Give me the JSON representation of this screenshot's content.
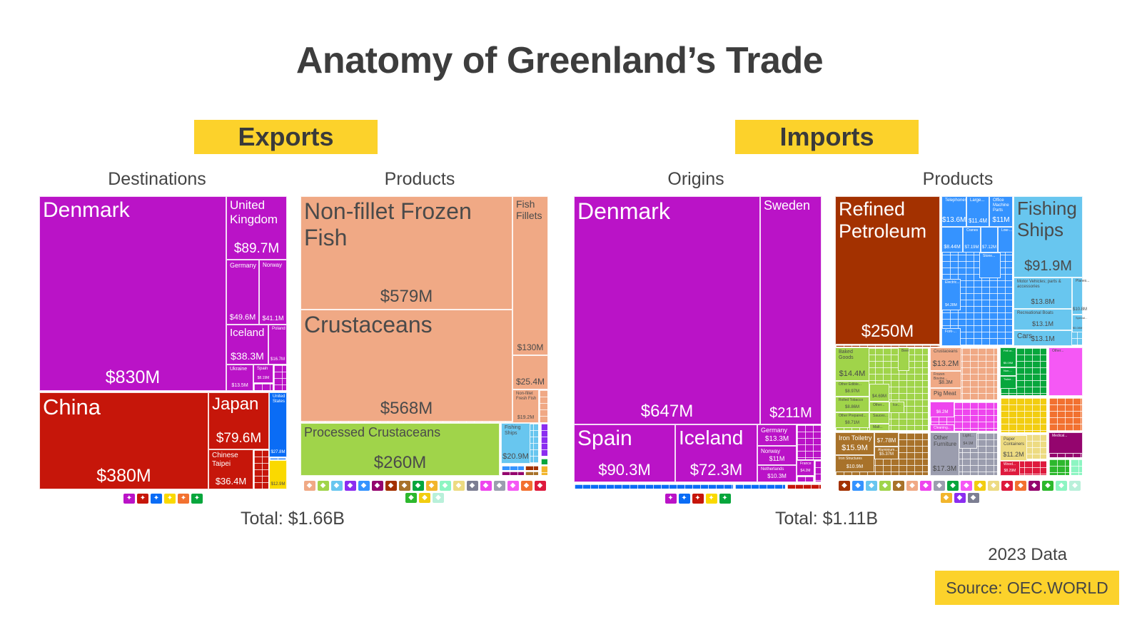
{
  "title": "Anatomy of Greenland’s Trade",
  "exports_label": "Exports",
  "imports_label": "Imports",
  "exports_total": "Total: $1.66B",
  "imports_total": "Total: $1.11B",
  "year_note": "2023 Data",
  "source": "Source: OEC.WORLD",
  "colors": {
    "badge": "#FCD22B",
    "europe": "#BA13C7",
    "asia": "#C6160A",
    "north_america": "#0A6CF5",
    "south_america": "#FAD900"
  },
  "chart_data": [
    {
      "type": "treemap",
      "title": "Destinations",
      "tiles": [
        {
          "label": "Denmark",
          "value": "$830M",
          "color": "#BA13C7"
        },
        {
          "label": "United Kingdom",
          "value": "$89.7M",
          "color": "#BA13C7"
        },
        {
          "label": "Germany",
          "value": "$49.6M",
          "color": "#BA13C7"
        },
        {
          "label": "Norway",
          "value": "$41.1M",
          "color": "#BA13C7"
        },
        {
          "label": "Iceland",
          "value": "$38.3M",
          "color": "#BA13C7"
        },
        {
          "label": "Poland",
          "value": "$16.7M",
          "color": "#BA13C7"
        },
        {
          "label": "Ukraine",
          "value": "$13.5M",
          "color": "#BA13C7"
        },
        {
          "label": "Spain",
          "value": "$8.19M",
          "color": "#BA13C7"
        },
        {
          "label": "China",
          "value": "$380M",
          "color": "#C6160A"
        },
        {
          "label": "Japan",
          "value": "$79.6M",
          "color": "#C6160A"
        },
        {
          "label": "Chinese Taipei",
          "value": "$36.4M",
          "color": "#C6160A"
        },
        {
          "label": "United States",
          "value": "$27.8M",
          "color": "#0A6CF5"
        },
        {
          "label": "",
          "value": "$12.9M",
          "color": "#FAD900"
        }
      ],
      "legend_icons": [
        {
          "name": "europe-icon",
          "color": "#BA13C7"
        },
        {
          "name": "asia-icon",
          "color": "#C6160A"
        },
        {
          "name": "north-america-icon",
          "color": "#0A6CF5"
        },
        {
          "name": "south-america-icon",
          "color": "#FAD900"
        },
        {
          "name": "africa-icon",
          "color": "#F27130"
        },
        {
          "name": "oceania-icon",
          "color": "#07A63C"
        }
      ]
    },
    {
      "type": "treemap",
      "title": "Products",
      "tiles": [
        {
          "label": "Non-fillet Frozen Fish",
          "value": "$579M",
          "color": "#F0A985"
        },
        {
          "label": "Crustaceans",
          "value": "$568M",
          "color": "#F0A985"
        },
        {
          "label": "Fish Fillets",
          "value": "$130M",
          "color": "#F0A985"
        },
        {
          "label": "",
          "value": "$25.4M",
          "color": "#F0A985"
        },
        {
          "label": "Non-fillet Fresh Fish",
          "value": "$19.2M",
          "color": "#F0A985"
        },
        {
          "label": "Processed Crustaceans",
          "value": "$260M",
          "color": "#A0D44A"
        },
        {
          "label": "Fishing Ships",
          "value": "$20.9M",
          "color": "#68C6EF"
        }
      ],
      "legend_icons": [
        {
          "name": "animal-products-icon",
          "color": "#F0A985"
        },
        {
          "name": "vegetable-products-icon",
          "color": "#A0D44A"
        },
        {
          "name": "transportation-icon",
          "color": "#68C6EF"
        },
        {
          "name": "precious-metals-icon",
          "color": "#8B2DF0"
        },
        {
          "name": "machines-icon",
          "color": "#3593FF"
        },
        {
          "name": "instruments-icon",
          "color": "#94056E"
        },
        {
          "name": "mineral-products-icon",
          "color": "#A33100"
        },
        {
          "name": "metals-icon",
          "color": "#A8722A"
        },
        {
          "name": "textiles-icon",
          "color": "#07A63C"
        },
        {
          "name": "foodstuffs-icon",
          "color": "#F2B52C"
        },
        {
          "name": "animal-hides-icon",
          "color": "#8DF5C2"
        },
        {
          "name": "paper-goods-icon",
          "color": "#EDDB82"
        },
        {
          "name": "arts-icon",
          "color": "#7C7E92"
        },
        {
          "name": "chemical-products-icon",
          "color": "#EE45EE"
        },
        {
          "name": "stone-and-glass-icon",
          "color": "#9B9DAE"
        },
        {
          "name": "plastics-icon",
          "color": "#F558F5"
        },
        {
          "name": "animal-fats-icon",
          "color": "#F27130"
        },
        {
          "name": "miscellaneous-icon",
          "color": "#DE1A3D"
        },
        {
          "name": "footwear-icon",
          "color": "#2DB82D"
        },
        {
          "name": "weapons-icon",
          "color": "#F2CD10"
        },
        {
          "name": "wood-products-icon",
          "color": "#B9F0DA"
        }
      ]
    },
    {
      "type": "treemap",
      "title": "Origins",
      "tiles": [
        {
          "label": "Denmark",
          "value": "$647M",
          "color": "#BA13C7"
        },
        {
          "label": "Sweden",
          "value": "$211M",
          "color": "#BA13C7"
        },
        {
          "label": "Spain",
          "value": "$90.3M",
          "color": "#BA13C7"
        },
        {
          "label": "Iceland",
          "value": "$72.3M",
          "color": "#BA13C7"
        },
        {
          "label": "Germany",
          "value": "$13.3M",
          "color": "#BA13C7"
        },
        {
          "label": "Norway",
          "value": "$11M",
          "color": "#BA13C7"
        },
        {
          "label": "Netherlands",
          "value": "$10.3M",
          "color": "#BA13C7"
        },
        {
          "label": "France",
          "value": "$4.2M",
          "color": "#BA13C7"
        }
      ],
      "legend_icons": [
        {
          "name": "europe-icon",
          "color": "#BA13C7"
        },
        {
          "name": "north-america-icon",
          "color": "#0A6CF5"
        },
        {
          "name": "asia-icon",
          "color": "#C6160A"
        },
        {
          "name": "south-america-icon",
          "color": "#FAD900"
        },
        {
          "name": "oceania-icon",
          "color": "#07A63C"
        }
      ]
    },
    {
      "type": "treemap",
      "title": "Products",
      "tiles": [
        {
          "label": "Refined Petroleum",
          "value": "$250M",
          "color": "#A33100"
        },
        {
          "label": "Telephones",
          "value": "$13.6M",
          "color": "#3593FF"
        },
        {
          "label": "Large...",
          "value": "$11.4M",
          "color": "#3593FF"
        },
        {
          "label": "Office Machine Parts",
          "value": "$11M",
          "color": "#3593FF"
        },
        {
          "label": "",
          "value": "$8.44M",
          "color": "#3593FF"
        },
        {
          "label": "Cranes",
          "value": "$7.19M",
          "color": "#3593FF"
        },
        {
          "label": "",
          "value": "$7.12M",
          "color": "#3593FF"
        },
        {
          "label": "Low-...",
          "value": "",
          "color": "#3593FF"
        },
        {
          "label": "Stone...",
          "value": "",
          "color": "#3593FF"
        },
        {
          "label": "Electric...",
          "value": "$4.28M",
          "color": "#3593FF"
        },
        {
          "label": "Fork-...",
          "value": "",
          "color": "#3593FF"
        },
        {
          "label": "Fishing Ships",
          "value": "$91.9M",
          "color": "#68C6EF"
        },
        {
          "label": "Motor Vehicles; parts & accessories",
          "value": "$13.8M",
          "color": "#68C6EF"
        },
        {
          "label": "Planes...",
          "value": "$10.8M",
          "color": "#68C6EF"
        },
        {
          "label": "Recreational Boats",
          "value": "$13.1M",
          "color": "#68C6EF"
        },
        {
          "label": "Special...",
          "value": "$5.08M",
          "color": "#68C6EF"
        },
        {
          "label": "Cars",
          "value": "$13.1M",
          "color": "#68C6EF"
        },
        {
          "label": "Baked Goods",
          "value": "$14.4M",
          "color": "#A0D44A"
        },
        {
          "label": "Other Edible...",
          "value": "$8.97M",
          "color": "#A0D44A"
        },
        {
          "label": "Rolled Tobacco",
          "value": "$8.86M",
          "color": "#A0D44A"
        },
        {
          "label": "Other Prepared...",
          "value": "$8.71M",
          "color": "#A0D44A"
        },
        {
          "label": "",
          "value": "$4.69M",
          "color": "#A0D44A"
        },
        {
          "label": "Beer",
          "value": "",
          "color": "#A0D44A"
        },
        {
          "label": "Other...",
          "value": "",
          "color": "#A0D44A"
        },
        {
          "label": "Sauces...",
          "value": "",
          "color": "#A0D44A"
        },
        {
          "label": "Ice...",
          "value": "",
          "color": "#A0D44A"
        },
        {
          "label": "Malt...",
          "value": "",
          "color": "#A0D44A"
        },
        {
          "label": "Iron Toiletry",
          "value": "$15.9M",
          "color": "#A8722A"
        },
        {
          "label": "",
          "value": "$7.78M",
          "color": "#A8722A"
        },
        {
          "label": "Aluminium...",
          "value": "$5.37M",
          "color": "#A8722A"
        },
        {
          "label": "Iron Structures",
          "value": "$10.9M",
          "color": "#A8722A"
        },
        {
          "label": "Crustaceans",
          "value": "$13.2M",
          "color": "#F0A985"
        },
        {
          "label": "Frozen Bovine...",
          "value": "$8.3M",
          "color": "#F0A985"
        },
        {
          "label": "Pig Meat",
          "value": "",
          "color": "#F0A985"
        },
        {
          "label": "",
          "value": "$6.2M",
          "color": "#EE45EE"
        },
        {
          "label": "Cleaning...",
          "value": "",
          "color": "#EE45EE"
        },
        {
          "label": "Other Furniture",
          "value": "$17.3M",
          "color": "#9B9DAE"
        },
        {
          "label": "Light...",
          "value": "$4.1M",
          "color": "#9B9DAE"
        },
        {
          "label": "Felt or...",
          "value": "$5.09M",
          "color": "#07A63C"
        },
        {
          "label": "Non-...",
          "value": "",
          "color": "#07A63C"
        },
        {
          "label": "Twine...",
          "value": "",
          "color": "#07A63C"
        },
        {
          "label": "Other...",
          "value": "",
          "color": "#F558F5"
        },
        {
          "label": "Paper Containers",
          "value": "$11.2M",
          "color": "#EDDB82"
        },
        {
          "label": "Wood...",
          "value": "$8.29M",
          "color": "#DE1A3D"
        },
        {
          "label": "Medical...",
          "value": "",
          "color": "#94056E"
        }
      ],
      "legend_icons": [
        {
          "name": "mineral-products-icon",
          "color": "#A33100"
        },
        {
          "name": "machines-icon",
          "color": "#3593FF"
        },
        {
          "name": "transportation-icon",
          "color": "#68C6EF"
        },
        {
          "name": "vegetable-products-icon",
          "color": "#A0D44A"
        },
        {
          "name": "metals-icon",
          "color": "#A8722A"
        },
        {
          "name": "animal-products-icon",
          "color": "#F0A985"
        },
        {
          "name": "chemical-products-icon",
          "color": "#EE45EE"
        },
        {
          "name": "stone-and-glass-icon",
          "color": "#9B9DAE"
        },
        {
          "name": "textiles-icon",
          "color": "#07A63C"
        },
        {
          "name": "plastics-icon",
          "color": "#F558F5"
        },
        {
          "name": "foodstuffs-icon",
          "color": "#F2CD10"
        },
        {
          "name": "paper-goods-icon",
          "color": "#EDDB82"
        },
        {
          "name": "miscellaneous-icon",
          "color": "#DE1A3D"
        },
        {
          "name": "animal-fats-icon",
          "color": "#F27130"
        },
        {
          "name": "instruments-icon",
          "color": "#94056E"
        },
        {
          "name": "footwear-icon",
          "color": "#2DB82D"
        },
        {
          "name": "animal-hides-icon",
          "color": "#8DF5C2"
        },
        {
          "name": "wood-products-icon",
          "color": "#B9F0DA"
        },
        {
          "name": "weapons-icon",
          "color": "#F2B52C"
        },
        {
          "name": "precious-metals-icon",
          "color": "#8B2DF0"
        },
        {
          "name": "arts-icon",
          "color": "#7C7E92"
        }
      ]
    }
  ]
}
